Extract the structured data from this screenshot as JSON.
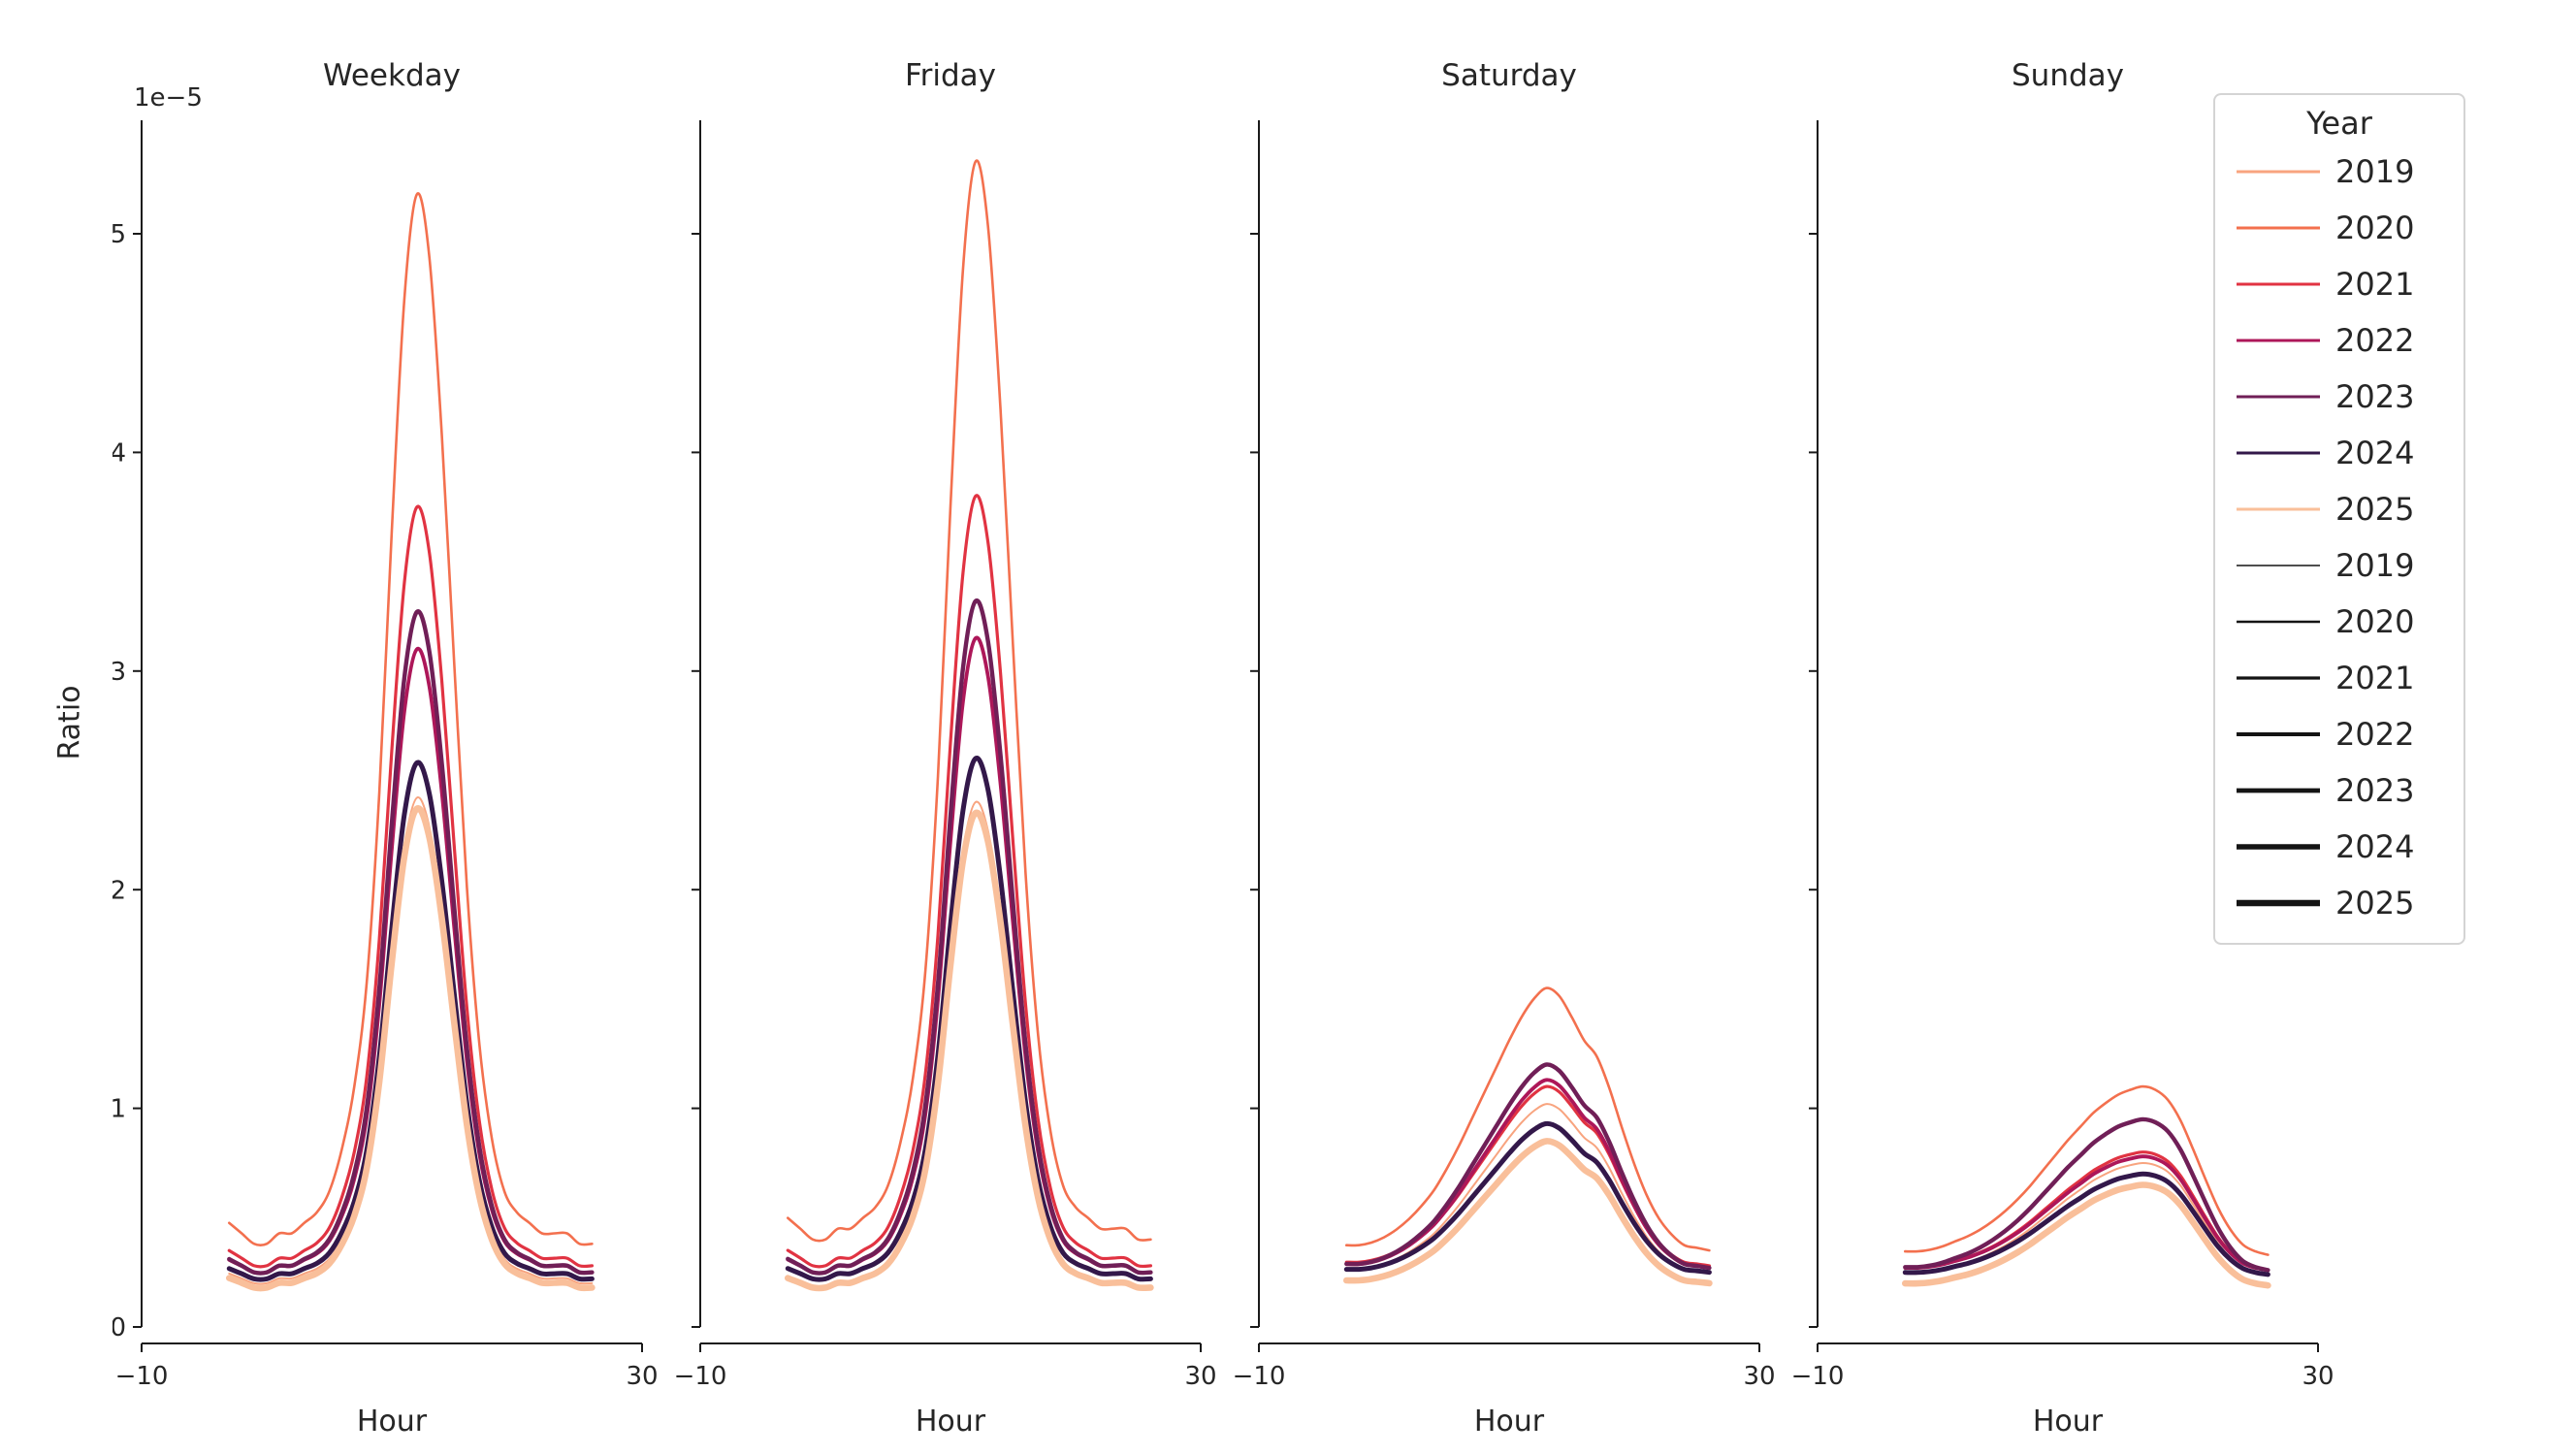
{
  "chart_data": {
    "type": "line",
    "xlabel": "Hour",
    "ylabel": "Ratio",
    "y_offset_label": "1e−5",
    "value_units": "1e-5",
    "xlim": [
      -10,
      30
    ],
    "ylim_1e5": [
      0,
      5.6
    ],
    "xticks": [
      -10,
      30
    ],
    "yticks": [
      0,
      1,
      2,
      3,
      4,
      5
    ],
    "grid": false,
    "legend": {
      "title": "Year",
      "position": "upper right",
      "color_entries": [
        "2019",
        "2020",
        "2021",
        "2022",
        "2023",
        "2024",
        "2025"
      ],
      "size_entries": [
        "2019",
        "2020",
        "2021",
        "2022",
        "2023",
        "2024",
        "2025"
      ],
      "size_entry_color": "#141414"
    },
    "years": [
      {
        "name": "2019",
        "color": "#f8a47f",
        "line_width": 2.0,
        "legend_size_width": 1.6
      },
      {
        "name": "2020",
        "color": "#f3704e",
        "line_width": 2.6,
        "legend_size_width": 2.4
      },
      {
        "name": "2021",
        "color": "#e13342",
        "line_width": 3.2,
        "legend_size_width": 3.2
      },
      {
        "name": "2022",
        "color": "#ad1759",
        "line_width": 3.8,
        "legend_size_width": 4.0
      },
      {
        "name": "2023",
        "color": "#701f57",
        "line_width": 4.4,
        "legend_size_width": 4.8
      },
      {
        "name": "2024",
        "color": "#33184a",
        "line_width": 5.0,
        "legend_size_width": 5.6
      },
      {
        "name": "2025",
        "color": "#f9bf9a",
        "line_width": 6.6,
        "legend_size_width": 6.6
      }
    ],
    "x": [
      -3,
      -2,
      -1,
      0,
      1,
      2,
      3,
      4,
      5,
      6,
      7,
      8,
      9,
      10,
      11,
      12,
      13,
      14,
      15,
      16,
      17,
      18,
      19,
      20,
      21,
      22,
      23,
      24,
      25,
      26
    ],
    "shapes": {
      "weekday": [
        0.02,
        0.01,
        0.0,
        0.0,
        0.01,
        0.01,
        0.02,
        0.03,
        0.05,
        0.09,
        0.15,
        0.25,
        0.43,
        0.68,
        0.9,
        1.0,
        0.94,
        0.77,
        0.55,
        0.34,
        0.19,
        0.1,
        0.05,
        0.03,
        0.02,
        0.01,
        0.01,
        0.01,
        0.0,
        0.0
      ],
      "saturday": [
        0.02,
        0.02,
        0.03,
        0.05,
        0.08,
        0.12,
        0.17,
        0.23,
        0.31,
        0.4,
        0.5,
        0.6,
        0.7,
        0.8,
        0.89,
        0.96,
        1.0,
        0.97,
        0.89,
        0.8,
        0.74,
        0.62,
        0.47,
        0.33,
        0.21,
        0.12,
        0.06,
        0.02,
        0.01,
        0.0
      ],
      "sunday": [
        0.02,
        0.02,
        0.03,
        0.05,
        0.08,
        0.11,
        0.15,
        0.2,
        0.26,
        0.33,
        0.41,
        0.5,
        0.59,
        0.68,
        0.76,
        0.84,
        0.9,
        0.95,
        0.98,
        1.0,
        0.98,
        0.92,
        0.8,
        0.63,
        0.45,
        0.28,
        0.15,
        0.06,
        0.02,
        0.0
      ]
    },
    "facets": [
      {
        "title": "Weekday",
        "shape": "weekday",
        "series": [
          {
            "year": "2019",
            "peak": 2.42,
            "base": 0.2
          },
          {
            "year": "2020",
            "peak": 5.18,
            "base": 0.38
          },
          {
            "year": "2021",
            "peak": 3.75,
            "base": 0.28
          },
          {
            "year": "2022",
            "peak": 3.1,
            "base": 0.25
          },
          {
            "year": "2023",
            "peak": 3.27,
            "base": 0.25
          },
          {
            "year": "2024",
            "peak": 2.58,
            "base": 0.22
          },
          {
            "year": "2025",
            "peak": 2.37,
            "base": 0.18
          }
        ]
      },
      {
        "title": "Friday",
        "shape": "weekday",
        "series": [
          {
            "year": "2019",
            "peak": 2.4,
            "base": 0.22
          },
          {
            "year": "2020",
            "peak": 5.33,
            "base": 0.4
          },
          {
            "year": "2021",
            "peak": 3.8,
            "base": 0.28
          },
          {
            "year": "2022",
            "peak": 3.15,
            "base": 0.25
          },
          {
            "year": "2023",
            "peak": 3.32,
            "base": 0.25
          },
          {
            "year": "2024",
            "peak": 2.6,
            "base": 0.22
          },
          {
            "year": "2025",
            "peak": 2.35,
            "base": 0.18
          }
        ]
      },
      {
        "title": "Saturday",
        "shape": "saturday",
        "series": [
          {
            "year": "2019",
            "peak": 1.02,
            "base": 0.25
          },
          {
            "year": "2020",
            "peak": 1.55,
            "base": 0.35
          },
          {
            "year": "2021",
            "peak": 1.1,
            "base": 0.28
          },
          {
            "year": "2022",
            "peak": 1.13,
            "base": 0.27
          },
          {
            "year": "2023",
            "peak": 1.2,
            "base": 0.27
          },
          {
            "year": "2024",
            "peak": 0.93,
            "base": 0.25
          },
          {
            "year": "2025",
            "peak": 0.85,
            "base": 0.2
          }
        ]
      },
      {
        "title": "Sunday",
        "shape": "sunday",
        "series": [
          {
            "year": "2019",
            "peak": 0.75,
            "base": 0.24
          },
          {
            "year": "2020",
            "peak": 1.1,
            "base": 0.33
          },
          {
            "year": "2021",
            "peak": 0.8,
            "base": 0.26
          },
          {
            "year": "2022",
            "peak": 0.78,
            "base": 0.26
          },
          {
            "year": "2023",
            "peak": 0.95,
            "base": 0.26
          },
          {
            "year": "2024",
            "peak": 0.7,
            "base": 0.24
          },
          {
            "year": "2025",
            "peak": 0.65,
            "base": 0.19
          }
        ]
      }
    ]
  }
}
